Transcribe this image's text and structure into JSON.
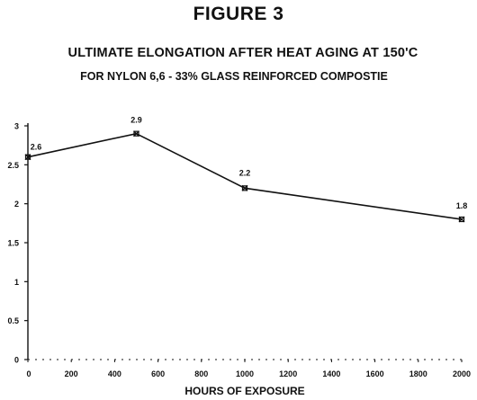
{
  "figure_label": "FIGURE 3",
  "chart_data": {
    "type": "line",
    "title": "ULTIMATE ELONGATION AFTER HEAT AGING AT 150'C",
    "subtitle": "FOR NYLON 6,6 - 33% GLASS REINFORCED COMPOSTIE",
    "xlabel": "HOURS OF EXPOSURE",
    "ylabel": "",
    "x": [
      0,
      500,
      1000,
      2000
    ],
    "values": [
      2.6,
      2.9,
      2.2,
      1.8
    ],
    "data_labels": [
      "2.6",
      "2.9",
      "2.2",
      "1.8"
    ],
    "xlim": [
      0,
      2000
    ],
    "ylim": [
      0,
      3
    ],
    "x_ticks": [
      0,
      200,
      400,
      600,
      800,
      1000,
      1200,
      1400,
      1600,
      1800,
      2000
    ],
    "x_tick_labels": [
      "0",
      "200",
      "400",
      "600",
      "800",
      "1000",
      "1200",
      "1400",
      "1600",
      "1800",
      "2000"
    ],
    "y_ticks": [
      0,
      0.5,
      1,
      1.5,
      2,
      2.5,
      3
    ],
    "y_tick_labels": [
      "0",
      "0.5",
      "1",
      "1.5",
      "2",
      "2.5",
      "3"
    ],
    "grid": false,
    "legend": "none",
    "line_color": "#111111",
    "marker": "x-square"
  }
}
